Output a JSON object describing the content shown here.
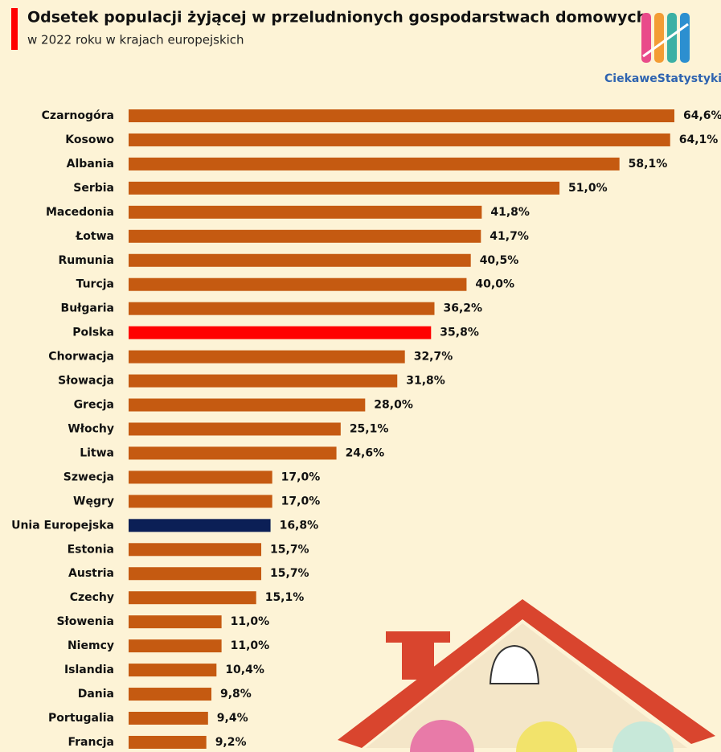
{
  "chart_data": {
    "type": "bar",
    "orientation": "horizontal",
    "title": "Odsetek populacji żyjącej w przeludnionych gospodarstwach domowych",
    "subtitle": "w 2022 roku w krajach europejskich",
    "source": "CiekaweStatystyki.p",
    "categories": [
      "Czarnogóra",
      "Kosowo",
      "Albania",
      "Serbia",
      "Macedonia",
      "Łotwa",
      "Rumunia",
      "Turcja",
      "Bułgaria",
      "Polska",
      "Chorwacja",
      "Słowacja",
      "Grecja",
      "Włochy",
      "Litwa",
      "Szwecja",
      "Węgry",
      "Unia Europejska",
      "Estonia",
      "Austria",
      "Czechy",
      "Słowenia",
      "Niemcy",
      "Islandia",
      "Dania",
      "Portugalia",
      "Francja"
    ],
    "values": [
      64.6,
      64.1,
      58.1,
      51.0,
      41.8,
      41.7,
      40.5,
      40.0,
      36.2,
      35.8,
      32.7,
      31.8,
      28.0,
      25.1,
      24.6,
      17.0,
      17.0,
      16.8,
      15.7,
      15.7,
      15.1,
      11.0,
      11.0,
      10.4,
      9.8,
      9.4,
      9.2
    ],
    "value_labels": [
      "64,6%",
      "64,1%",
      "58,1%",
      "51,0%",
      "41,8%",
      "41,7%",
      "40,5%",
      "40,0%",
      "36,2%",
      "35,8%",
      "32,7%",
      "31,8%",
      "28,0%",
      "25,1%",
      "24,6%",
      "17,0%",
      "17,0%",
      "16,8%",
      "15,7%",
      "15,7%",
      "15,1%",
      "11,0%",
      "11,0%",
      "10,4%",
      "9,8%",
      "9,4%",
      "9,2%"
    ],
    "colors": [
      "#c55a11",
      "#c55a11",
      "#c55a11",
      "#c55a11",
      "#c55a11",
      "#c55a11",
      "#c55a11",
      "#c55a11",
      "#c55a11",
      "#ff0000",
      "#c55a11",
      "#c55a11",
      "#c55a11",
      "#c55a11",
      "#c55a11",
      "#c55a11",
      "#c55a11",
      "#0b1f56",
      "#c55a11",
      "#c55a11",
      "#c55a11",
      "#c55a11",
      "#c55a11",
      "#c55a11",
      "#c55a11",
      "#c55a11",
      "#c55a11"
    ]
  }
}
